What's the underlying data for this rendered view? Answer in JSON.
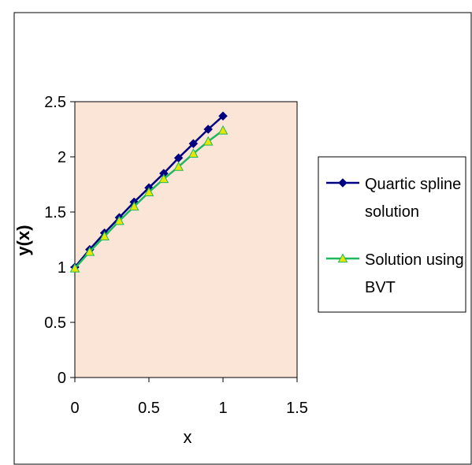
{
  "chart_data": {
    "type": "line",
    "title": "",
    "xlabel": "x",
    "ylabel": "y(x)",
    "xlim": [
      0,
      1.5
    ],
    "ylim": [
      0,
      2.5
    ],
    "x_ticks": [
      {
        "value": 0,
        "label": "0"
      },
      {
        "value": 0.5,
        "label": "0.5"
      },
      {
        "value": 1,
        "label": "1"
      },
      {
        "value": 1.5,
        "label": "1.5"
      }
    ],
    "y_ticks": [
      {
        "value": 0,
        "label": "0"
      },
      {
        "value": 0.5,
        "label": "0.5"
      },
      {
        "value": 1,
        "label": "1"
      },
      {
        "value": 1.5,
        "label": "1.5"
      },
      {
        "value": 2,
        "label": "2"
      },
      {
        "value": 2.5,
        "label": "2.5"
      }
    ],
    "grid": false,
    "legend_position": "right",
    "plot_background": "#fbe5d6",
    "x": [
      0,
      0.1,
      0.2,
      0.3,
      0.4,
      0.5,
      0.6,
      0.7,
      0.8,
      0.9,
      1.0
    ],
    "series": [
      {
        "name_lines": [
          "Quartic spline",
          "solution"
        ],
        "marker": "diamond",
        "color": "#000080",
        "values": [
          1.0,
          1.16,
          1.31,
          1.45,
          1.59,
          1.72,
          1.85,
          1.99,
          2.12,
          2.25,
          2.37
        ]
      },
      {
        "name_lines": [
          "Solution using",
          "BVT"
        ],
        "marker": "triangle",
        "color": "#1fb85f",
        "marker_fill": "#e6e600",
        "values": [
          0.99,
          1.14,
          1.28,
          1.42,
          1.55,
          1.68,
          1.8,
          1.91,
          2.03,
          2.14,
          2.24
        ]
      }
    ]
  }
}
